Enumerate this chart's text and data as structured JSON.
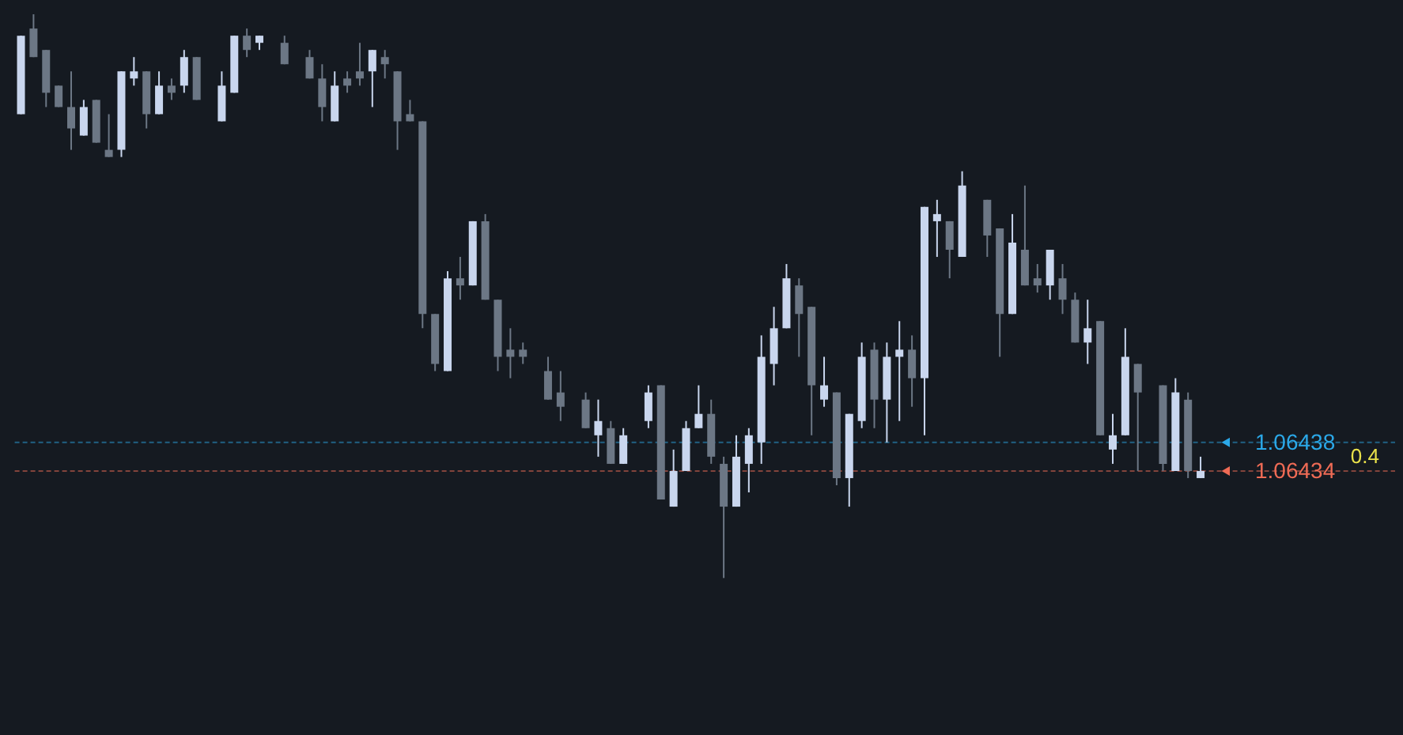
{
  "chart_data": {
    "type": "candlestick",
    "categories": [
      null,
      null,
      null,
      null,
      null,
      null,
      null,
      null,
      null,
      null,
      null,
      null,
      null,
      null,
      null,
      null,
      null,
      null,
      null,
      null,
      null,
      null,
      null,
      null,
      null,
      null,
      null,
      null,
      null,
      null,
      null,
      null,
      null,
      null,
      null,
      null,
      null,
      null,
      null,
      null,
      null,
      null,
      null,
      null,
      null,
      null,
      null,
      null,
      null,
      null,
      null,
      null,
      null,
      null,
      null,
      null,
      null,
      null,
      null,
      null,
      null,
      null,
      null,
      null,
      null,
      null,
      null,
      null,
      null,
      null,
      null,
      null,
      null,
      null,
      null,
      null,
      null,
      null,
      null,
      null,
      null,
      null,
      null,
      null,
      null,
      null,
      null,
      null,
      null,
      null,
      null,
      null,
      null,
      null,
      null,
      null,
      null,
      null,
      null,
      null,
      null,
      null,
      null,
      null,
      null,
      null,
      null,
      null,
      null,
      null
    ],
    "ohlc": [
      [
        1.06484,
        1.06495,
        1.06484,
        1.06495
      ],
      [
        1.06496,
        1.06498,
        1.06492,
        1.06492
      ],
      [
        1.06493,
        1.06493,
        1.06485,
        1.06487
      ],
      [
        1.06488,
        1.06488,
        1.06485,
        1.06485
      ],
      [
        1.06485,
        1.0649,
        1.06479,
        1.06482
      ],
      [
        1.06481,
        1.06486,
        1.06481,
        1.06485
      ],
      [
        1.06486,
        1.06486,
        1.0648,
        1.0648
      ],
      [
        1.06479,
        1.06484,
        1.06478,
        1.06478
      ],
      [
        1.06479,
        1.0649,
        1.06478,
        1.0649
      ],
      [
        1.06489,
        1.06492,
        1.06488,
        1.0649
      ],
      [
        1.0649,
        1.0649,
        1.06482,
        1.06484
      ],
      [
        1.06484,
        1.0649,
        1.06484,
        1.06488
      ],
      [
        1.06488,
        1.06489,
        1.06486,
        1.06487
      ],
      [
        1.06488,
        1.06493,
        1.06487,
        1.06492
      ],
      [
        1.06492,
        1.06492,
        1.06486,
        1.06486
      ],
      null,
      [
        1.06483,
        1.0649,
        1.06483,
        1.06488
      ],
      [
        1.06487,
        1.06495,
        1.06487,
        1.06495
      ],
      [
        1.06495,
        1.06496,
        1.06492,
        1.06493
      ],
      [
        1.06494,
        1.06495,
        1.06493,
        1.06495
      ],
      null,
      [
        1.06494,
        1.06495,
        1.06491,
        1.06491
      ],
      null,
      [
        1.06492,
        1.06493,
        1.06489,
        1.06489
      ],
      [
        1.06489,
        1.06491,
        1.06483,
        1.06485
      ],
      [
        1.06483,
        1.0649,
        1.06483,
        1.06488
      ],
      [
        1.06489,
        1.0649,
        1.06487,
        1.06488
      ],
      [
        1.0649,
        1.06494,
        1.06488,
        1.06489
      ],
      [
        1.0649,
        1.06493,
        1.06485,
        1.06493
      ],
      [
        1.06492,
        1.06493,
        1.06489,
        1.06491
      ],
      [
        1.0649,
        1.0649,
        1.06479,
        1.06483
      ],
      [
        1.06484,
        1.06486,
        1.06483,
        1.06483
      ],
      [
        1.06483,
        1.06483,
        1.06454,
        1.06456
      ],
      [
        1.06456,
        1.06456,
        1.06448,
        1.06449
      ],
      [
        1.06448,
        1.06462,
        1.06448,
        1.06461
      ],
      [
        1.06461,
        1.06464,
        1.06458,
        1.0646
      ],
      [
        1.0646,
        1.06469,
        1.0646,
        1.06469
      ],
      [
        1.06469,
        1.0647,
        1.06458,
        1.06458
      ],
      [
        1.06458,
        1.06458,
        1.06448,
        1.0645
      ],
      [
        1.06451,
        1.06454,
        1.06447,
        1.0645
      ],
      [
        1.06451,
        1.06452,
        1.06449,
        1.0645
      ],
      null,
      [
        1.06448,
        1.0645,
        1.06444,
        1.06444
      ],
      [
        1.06445,
        1.06448,
        1.06441,
        1.06443
      ],
      null,
      [
        1.06444,
        1.06445,
        1.0644,
        1.0644
      ],
      [
        1.06439,
        1.06444,
        1.06436,
        1.06441
      ],
      [
        1.0644,
        1.06441,
        1.06435,
        1.06435
      ],
      [
        1.06435,
        1.0644,
        1.06435,
        1.06439
      ],
      null,
      [
        1.06441,
        1.06446,
        1.0644,
        1.06445
      ],
      [
        1.06446,
        1.06446,
        1.0643,
        1.0643
      ],
      [
        1.06429,
        1.06437,
        1.06429,
        1.06434
      ],
      [
        1.06434,
        1.06441,
        1.06434,
        1.0644
      ],
      [
        1.0644,
        1.06446,
        1.0644,
        1.06442
      ],
      [
        1.06442,
        1.06444,
        1.06435,
        1.06436
      ],
      [
        1.06435,
        1.06436,
        1.06419,
        1.06429
      ],
      [
        1.06429,
        1.06439,
        1.06429,
        1.06436
      ],
      [
        1.06435,
        1.0644,
        1.06431,
        1.06439
      ],
      [
        1.06438,
        1.06453,
        1.06435,
        1.0645
      ],
      [
        1.06449,
        1.06457,
        1.06446,
        1.06454
      ],
      [
        1.06454,
        1.06463,
        1.06454,
        1.06461
      ],
      [
        1.0646,
        1.06461,
        1.0645,
        1.06456
      ],
      [
        1.06457,
        1.06457,
        1.06439,
        1.06446
      ],
      [
        1.06444,
        1.0645,
        1.06443,
        1.06446
      ],
      [
        1.06445,
        1.06445,
        1.06432,
        1.06433
      ],
      [
        1.06433,
        1.06442,
        1.06429,
        1.06442
      ],
      [
        1.06441,
        1.06452,
        1.0644,
        1.0645
      ],
      [
        1.06451,
        1.06452,
        1.0644,
        1.06444
      ],
      [
        1.06444,
        1.06452,
        1.06438,
        1.0645
      ],
      [
        1.0645,
        1.06455,
        1.06441,
        1.06451
      ],
      [
        1.06451,
        1.06453,
        1.06443,
        1.06447
      ],
      [
        1.06447,
        1.06471,
        1.06439,
        1.06471
      ],
      [
        1.06469,
        1.06472,
        1.06464,
        1.0647
      ],
      [
        1.06469,
        1.06469,
        1.06461,
        1.06465
      ],
      [
        1.06464,
        1.06476,
        1.06464,
        1.06474
      ],
      null,
      [
        1.06472,
        1.06472,
        1.06464,
        1.06467
      ],
      [
        1.06468,
        1.06468,
        1.0645,
        1.06456
      ],
      [
        1.06456,
        1.0647,
        1.06456,
        1.06466
      ],
      [
        1.06465,
        1.06474,
        1.0646,
        1.0646
      ],
      [
        1.06461,
        1.06463,
        1.06459,
        1.0646
      ],
      [
        1.0646,
        1.06465,
        1.06458,
        1.06465
      ],
      [
        1.06461,
        1.06463,
        1.06456,
        1.06458
      ],
      [
        1.06458,
        1.06459,
        1.06452,
        1.06452
      ],
      [
        1.06452,
        1.06458,
        1.06449,
        1.06454
      ],
      [
        1.06455,
        1.06455,
        1.06439,
        1.06439
      ],
      [
        1.06437,
        1.06442,
        1.06435,
        1.06439
      ],
      [
        1.06439,
        1.06454,
        1.06439,
        1.0645
      ],
      [
        1.06449,
        1.06449,
        1.06434,
        1.06445
      ],
      null,
      [
        1.06446,
        1.06446,
        1.06434,
        1.06435
      ],
      [
        1.06434,
        1.06447,
        1.06434,
        1.06445
      ],
      [
        1.06444,
        1.06445,
        1.06433,
        1.06434
      ],
      [
        1.06433,
        1.06436,
        1.06433,
        1.06434
      ],
      null,
      null,
      null,
      null,
      null,
      null,
      null,
      null,
      null,
      null,
      null,
      null,
      null,
      null,
      null
    ],
    "colors": [
      "#c9d6ee",
      "#6c7785",
      "#6c7785",
      "#6c7785",
      "#6c7785",
      "#c9d6ee",
      "#6c7785",
      "#6c7785",
      "#c9d6ee",
      "#c9d6ee",
      "#6c7785",
      "#c9d6ee",
      "#6c7785",
      "#c9d6ee",
      "#6c7785",
      null,
      "#c9d6ee",
      "#c9d6ee",
      "#6c7785",
      "#c9d6ee",
      null,
      "#6c7785",
      null,
      "#6c7785",
      "#6c7785",
      "#c9d6ee",
      "#6c7785",
      "#6c7785",
      "#c9d6ee",
      "#6c7785",
      "#6c7785",
      "#6c7785",
      "#6c7785",
      "#6c7785",
      "#c9d6ee",
      "#6c7785",
      "#c9d6ee",
      "#6c7785",
      "#6c7785",
      "#6c7785",
      "#6c7785",
      null,
      "#6c7785",
      "#6c7785",
      null,
      "#6c7785",
      "#c9d6ee",
      "#6c7785",
      "#c9d6ee",
      null,
      "#c9d6ee",
      "#6c7785",
      "#c9d6ee",
      "#c9d6ee",
      "#c9d6ee",
      "#6c7785",
      "#6c7785",
      "#c9d6ee",
      "#c9d6ee",
      "#c9d6ee",
      "#c9d6ee",
      "#c9d6ee",
      "#6c7785",
      "#6c7785",
      "#c9d6ee",
      "#6c7785",
      "#c9d6ee",
      "#c9d6ee",
      "#6c7785",
      "#c9d6ee",
      "#c9d6ee",
      "#6c7785",
      "#c9d6ee",
      "#c9d6ee",
      "#6c7785",
      "#c9d6ee",
      null,
      "#6c7785",
      "#6c7785",
      "#c9d6ee",
      "#6c7785",
      "#6c7785",
      "#c9d6ee",
      "#6c7785",
      "#6c7785",
      "#c9d6ee",
      "#6c7785",
      "#c9d6ee",
      "#c9d6ee",
      "#6c7785",
      null,
      "#6c7785",
      "#c9d6ee",
      "#6c7785",
      "#c9d6ee",
      null,
      null,
      null,
      null,
      null,
      null,
      null,
      null,
      null,
      null,
      null,
      null,
      null,
      null,
      null
    ],
    "ylim": [
      1.06397,
      1.065
    ],
    "yticks": [
      1.06438,
      1.06434
    ],
    "ref_lines": [
      {
        "axis": "y",
        "value": 1.06438,
        "color": "#2ba8e8",
        "line_style": "dashed"
      },
      {
        "axis": "y",
        "value": 1.06434,
        "color": "#ef6b55",
        "line_style": "dashed"
      }
    ],
    "annotations": [
      "0.4"
    ]
  }
}
